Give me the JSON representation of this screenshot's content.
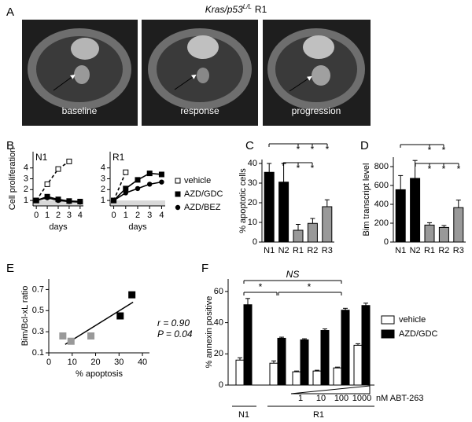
{
  "figure": {
    "panel_letters": [
      "A",
      "B",
      "C",
      "D",
      "E",
      "F"
    ]
  },
  "image_panel": {
    "title_gene": "Kras/p53",
    "title_superscript": "L/L",
    "title_suffix": "R1",
    "labels": [
      "baseline",
      "response",
      "progression"
    ]
  },
  "chart_data": [
    {
      "type": "line",
      "title": "N1",
      "ylabel": "Cell proliferation",
      "xlabel": "days",
      "x": [
        0,
        1,
        2,
        3,
        4
      ],
      "xlim": [
        -0.3,
        4.3
      ],
      "xticks": [
        0,
        1,
        2,
        3,
        4
      ],
      "ylim": [
        0.5,
        5.5
      ],
      "yticks": [
        1,
        2,
        3,
        4
      ],
      "shaded_below": 1,
      "series": [
        {
          "color": "#000000",
          "marker": "square-open",
          "dashed": true,
          "values": [
            1,
            2.5,
            3.9,
            4.6,
            null
          ]
        },
        {
          "color": "#000000",
          "marker": "square",
          "values": [
            1,
            1.35,
            1.1,
            0.95,
            0.9
          ]
        },
        {
          "color": "#000000",
          "marker": "circle",
          "values": [
            1,
            1.25,
            1.0,
            0.9,
            0.85
          ]
        }
      ]
    },
    {
      "type": "line",
      "title": "R1",
      "xlabel": "days",
      "x": [
        0,
        1,
        2,
        3,
        4
      ],
      "xlim": [
        -0.3,
        4.3
      ],
      "xticks": [
        0,
        1,
        2,
        3,
        4
      ],
      "ylim": [
        0.5,
        5.5
      ],
      "yticks": [
        1,
        2,
        3,
        4
      ],
      "shaded_below": 1,
      "legend": "right",
      "series": [
        {
          "name": "vehicle",
          "color": "#000000",
          "marker": "square-open",
          "dashed": true,
          "values": [
            1,
            3.6,
            null,
            null,
            null
          ]
        },
        {
          "name": "AZD/GDC",
          "color": "#000000",
          "marker": "square",
          "values": [
            1,
            2.1,
            2.9,
            3.5,
            3.4
          ]
        },
        {
          "name": "AZD/BEZ",
          "color": "#000000",
          "marker": "circle",
          "values": [
            1,
            1.7,
            2.1,
            2.5,
            2.7
          ]
        }
      ]
    },
    {
      "type": "bar",
      "ylabel": "% apoptotic cells",
      "categories": [
        "N1",
        "N2",
        "R1",
        "R2",
        "R3"
      ],
      "values": [
        35.5,
        30.5,
        6,
        9.5,
        18
      ],
      "errors": [
        4.5,
        9.5,
        3,
        2.5,
        3.5
      ],
      "colors": [
        "#000000",
        "#000000",
        "#999999",
        "#999999",
        "#999999"
      ],
      "ylim": [
        0,
        42
      ],
      "yticks": [
        0,
        10,
        20,
        30,
        40
      ],
      "annotations": [
        "*",
        "*",
        "*",
        "*",
        "*"
      ]
    },
    {
      "type": "bar",
      "ylabel": "Bim transcript level",
      "categories": [
        "N1",
        "N2",
        "R1",
        "R2",
        "R3"
      ],
      "values": [
        555,
        675,
        180,
        155,
        365
      ],
      "errors": [
        150,
        190,
        25,
        20,
        80
      ],
      "colors": [
        "#000000",
        "#000000",
        "#999999",
        "#999999",
        "#999999"
      ],
      "ylim": [
        0,
        900
      ],
      "yticks": [
        0,
        200,
        400,
        600,
        800
      ],
      "annotations": [
        "*",
        "*",
        "*",
        "*",
        "*"
      ]
    },
    {
      "type": "scatter",
      "ylabel": "Bim/Bcl-xL ratio",
      "xlabel": "% apoptosis",
      "xlim": [
        0,
        43
      ],
      "xticks": [
        0,
        10,
        20,
        30,
        40
      ],
      "ylim": [
        0.1,
        0.8
      ],
      "yticks": [
        0.1,
        0.3,
        0.5,
        0.7
      ],
      "series": [
        {
          "color": "#999999",
          "marker": "square",
          "x": [
            6,
            9.5,
            18
          ],
          "values": [
            0.26,
            0.21,
            0.26
          ]
        },
        {
          "color": "#000000",
          "marker": "square",
          "x": [
            30.5,
            35.5
          ],
          "values": [
            0.45,
            0.65
          ]
        }
      ],
      "trendline": {
        "x": [
          7,
          36
        ],
        "values": [
          0.18,
          0.58
        ]
      },
      "annotations": [
        "r = 0.90",
        "P = 0.04"
      ]
    },
    {
      "type": "grouped-bar",
      "ylabel": "% annexin positive",
      "categories": [
        null,
        null,
        "1",
        "10",
        "100",
        "1000"
      ],
      "group_labels": [
        "N1",
        "R1"
      ],
      "concentration_label": "nM ABT-263",
      "ylim": [
        0,
        68
      ],
      "yticks": [
        0,
        20,
        40,
        60
      ],
      "legend": "right",
      "series": [
        {
          "name": "vehicle",
          "color": "#ffffff",
          "values": [
            16,
            14,
            8.5,
            9,
            11,
            25.5
          ],
          "errors": [
            1.5,
            1.5,
            0.5,
            0.5,
            0.5,
            1
          ]
        },
        {
          "name": "AZD/GDC",
          "color": "#000000",
          "values": [
            51.5,
            30,
            29,
            35,
            48,
            51
          ],
          "errors": [
            4,
            0.7,
            0.7,
            1,
            1.2,
            1.5
          ]
        }
      ],
      "annotations": [
        "*",
        "NS",
        "*"
      ]
    }
  ]
}
